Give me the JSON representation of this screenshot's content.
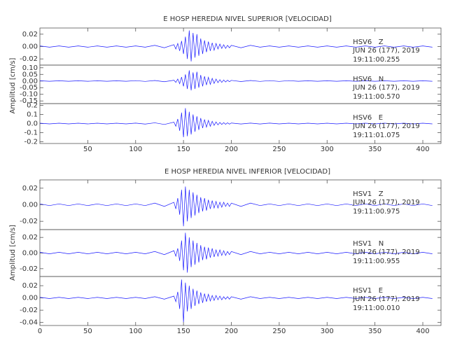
{
  "chart_data": [
    {
      "type": "line",
      "title": "E HOSP HEREDIA NIVEL SUPERIOR [VELOCIDAD]",
      "ylabel": "Amplitud [cm/s]",
      "xlim": [
        0,
        419
      ],
      "xticks": [
        50,
        100,
        150,
        200,
        250,
        300,
        350,
        400
      ],
      "x": [
        0,
        10,
        20,
        30,
        40,
        50,
        60,
        70,
        80,
        90,
        100,
        110,
        120,
        130,
        140,
        142,
        144,
        146,
        148,
        150,
        152,
        154,
        156,
        158,
        160,
        162,
        164,
        166,
        168,
        170,
        172,
        174,
        176,
        178,
        180,
        182,
        184,
        186,
        188,
        190,
        192,
        194,
        196,
        198,
        200,
        210,
        220,
        230,
        240,
        250,
        260,
        270,
        280,
        290,
        300,
        310,
        320,
        330,
        340,
        350,
        360,
        370,
        380,
        390,
        400,
        410
      ],
      "panels": [
        {
          "name": "HSV6   Z",
          "date": "JUN 26 (177), 2019",
          "time": "19:11:00.255",
          "color": "#1a1aff",
          "ylim": [
            -0.03,
            0.03
          ],
          "yticks": [
            {
              "value": 0.02,
              "label": "0.02"
            },
            {
              "value": 0,
              "label": "0.00"
            },
            {
              "value": -0.02,
              "label": "-0.02"
            }
          ],
          "values": [
            0.001,
            -0.001,
            0.001,
            -0.001,
            0.001,
            -0.001,
            0.001,
            -0.001,
            0.001,
            -0.001,
            0.001,
            -0.001,
            0.002,
            -0.002,
            0.003,
            -0.004,
            0.005,
            -0.007,
            0.009,
            -0.012,
            0.016,
            -0.02,
            0.026,
            -0.024,
            0.022,
            -0.018,
            0.02,
            -0.015,
            0.013,
            -0.012,
            0.01,
            -0.009,
            0.008,
            -0.007,
            0.006,
            -0.006,
            0.005,
            -0.004,
            0.004,
            -0.003,
            0.003,
            -0.003,
            0.002,
            -0.002,
            0.002,
            -0.002,
            0.002,
            -0.001,
            0.001,
            -0.001,
            0.001,
            -0.001,
            0.001,
            -0.001,
            0.001,
            -0.001,
            0.001,
            -0.001,
            0.001,
            -0.001,
            0.001,
            -0.001,
            0.001,
            -0.001,
            0.001,
            -0.001
          ]
        },
        {
          "name": "HSV6   N",
          "date": "JUN 26 (177), 2019",
          "time": "19:11:00.570",
          "color": "#1a1aff",
          "ylim": [
            -0.17,
            0.12
          ],
          "yticks": [
            {
              "value": 0.1,
              "label": "0.10"
            },
            {
              "value": 0.05,
              "label": "0.05"
            },
            {
              "value": 0,
              "label": "0.00"
            },
            {
              "value": -0.05,
              "label": "-0.05"
            },
            {
              "value": -0.1,
              "label": "-0.10"
            },
            {
              "value": -0.15,
              "label": "-0.15"
            }
          ],
          "values": [
            0.002,
            -0.002,
            0.002,
            -0.002,
            0.002,
            -0.002,
            0.002,
            -0.002,
            0.002,
            -0.002,
            0.003,
            -0.003,
            0.004,
            -0.005,
            0.006,
            -0.01,
            0.015,
            -0.02,
            0.03,
            -0.04,
            0.05,
            -0.06,
            0.08,
            -0.07,
            0.065,
            -0.06,
            0.07,
            -0.05,
            0.045,
            -0.04,
            0.035,
            -0.03,
            0.028,
            -0.025,
            0.02,
            -0.018,
            0.015,
            -0.012,
            0.01,
            -0.01,
            0.008,
            -0.007,
            0.006,
            -0.005,
            0.005,
            -0.004,
            0.004,
            -0.003,
            0.003,
            -0.003,
            0.003,
            -0.002,
            0.002,
            -0.002,
            0.002,
            -0.002,
            0.002,
            -0.002,
            0.002,
            -0.002,
            0.002,
            -0.002,
            0.002,
            -0.002,
            0.002,
            -0.002
          ]
        },
        {
          "name": "HSV6   E",
          "date": "JUN 26 (177), 2019",
          "time": "19:11:01.075",
          "color": "#1a1aff",
          "ylim": [
            -0.22,
            0.22
          ],
          "yticks": [
            {
              "value": 0.2,
              "label": "0.2"
            },
            {
              "value": 0.1,
              "label": "0.1"
            },
            {
              "value": 0,
              "label": "0.0"
            },
            {
              "value": -0.1,
              "label": "-0.1"
            },
            {
              "value": -0.2,
              "label": "-0.2"
            }
          ],
          "values": [
            0.004,
            -0.004,
            0.004,
            -0.004,
            0.004,
            -0.004,
            0.004,
            -0.004,
            0.004,
            -0.004,
            0.005,
            -0.006,
            0.008,
            -0.01,
            0.015,
            -0.03,
            0.05,
            -0.08,
            0.12,
            -0.15,
            0.17,
            -0.14,
            0.13,
            -0.12,
            0.1,
            -0.09,
            0.08,
            -0.07,
            0.06,
            -0.05,
            0.045,
            -0.04,
            0.035,
            -0.03,
            0.025,
            -0.02,
            0.018,
            -0.015,
            0.012,
            -0.01,
            0.01,
            -0.008,
            0.008,
            -0.006,
            0.006,
            -0.005,
            0.005,
            -0.005,
            0.005,
            -0.004,
            0.004,
            -0.004,
            0.004,
            -0.004,
            0.004,
            -0.004,
            0.004,
            -0.004,
            0.004,
            -0.004,
            0.004,
            -0.004,
            0.004,
            -0.004,
            0.004,
            -0.004
          ]
        }
      ]
    },
    {
      "type": "line",
      "title": "E HOSP HEREDIA NIVEL INFERIOR [VELOCIDAD]",
      "ylabel": "Amplitud [cm/s]",
      "xlim": [
        0,
        419
      ],
      "xticks": [
        0,
        50,
        100,
        150,
        200,
        250,
        300,
        350,
        400
      ],
      "x": [
        0,
        10,
        20,
        30,
        40,
        50,
        60,
        70,
        80,
        90,
        100,
        110,
        120,
        130,
        140,
        142,
        144,
        146,
        148,
        150,
        152,
        154,
        156,
        158,
        160,
        162,
        164,
        166,
        168,
        170,
        172,
        174,
        176,
        178,
        180,
        182,
        184,
        186,
        188,
        190,
        192,
        194,
        196,
        198,
        200,
        210,
        220,
        230,
        240,
        250,
        260,
        270,
        280,
        290,
        300,
        310,
        320,
        330,
        340,
        350,
        360,
        370,
        380,
        390,
        400,
        410
      ],
      "panels": [
        {
          "name": "HSV1   Z",
          "date": "JUN 26 (177), 2019",
          "time": "19:11:00.975",
          "color": "#1a1aff",
          "ylim": [
            -0.03,
            0.03
          ],
          "yticks": [
            {
              "value": 0.02,
              "label": "0.02"
            },
            {
              "value": 0,
              "label": "0.00"
            },
            {
              "value": -0.02,
              "label": "-0.02"
            }
          ],
          "values": [
            0.001,
            -0.001,
            0.001,
            -0.001,
            0.001,
            -0.001,
            0.001,
            -0.001,
            0.001,
            -0.001,
            0.001,
            -0.001,
            0.002,
            -0.002,
            0.003,
            -0.005,
            0.008,
            -0.012,
            0.018,
            -0.026,
            0.022,
            -0.02,
            0.018,
            -0.016,
            0.015,
            -0.013,
            0.012,
            -0.01,
            0.009,
            -0.008,
            0.008,
            -0.007,
            0.006,
            -0.005,
            0.005,
            -0.004,
            0.004,
            -0.004,
            0.003,
            -0.003,
            0.003,
            -0.002,
            0.002,
            -0.002,
            0.002,
            -0.002,
            0.002,
            -0.001,
            0.001,
            -0.001,
            0.001,
            -0.001,
            0.001,
            -0.001,
            0.001,
            -0.001,
            0.001,
            -0.001,
            0.001,
            -0.001,
            0.001,
            -0.001,
            0.001,
            -0.001,
            0.001,
            -0.001
          ]
        },
        {
          "name": "HSV1   N",
          "date": "JUN 26 (177), 2019",
          "time": "19:11:00.955",
          "color": "#1a1aff",
          "ylim": [
            -0.03,
            0.03
          ],
          "yticks": [
            {
              "value": 0.02,
              "label": "0.02"
            },
            {
              "value": 0,
              "label": "0.00"
            },
            {
              "value": -0.02,
              "label": "-0.02"
            }
          ],
          "values": [
            0.001,
            -0.001,
            0.001,
            -0.001,
            0.001,
            -0.001,
            0.001,
            -0.001,
            0.001,
            -0.001,
            0.001,
            -0.001,
            0.002,
            -0.002,
            0.003,
            -0.004,
            0.006,
            -0.01,
            0.016,
            -0.022,
            0.026,
            -0.025,
            0.02,
            -0.018,
            0.016,
            -0.015,
            0.013,
            -0.012,
            0.01,
            -0.009,
            0.008,
            -0.008,
            0.007,
            -0.006,
            0.006,
            -0.005,
            0.004,
            -0.004,
            0.004,
            -0.003,
            0.003,
            -0.003,
            0.002,
            -0.002,
            0.002,
            -0.002,
            0.002,
            -0.001,
            0.001,
            -0.001,
            0.001,
            -0.001,
            0.001,
            -0.001,
            0.001,
            -0.001,
            0.001,
            -0.001,
            0.001,
            -0.001,
            0.001,
            -0.001,
            0.001,
            -0.001,
            0.001,
            -0.001
          ]
        },
        {
          "name": "HSV1   E",
          "date": "JUN 26 (177), 2019",
          "time": "19:11:00.010",
          "color": "#1a1aff",
          "ylim": [
            -0.045,
            0.035
          ],
          "yticks": [
            {
              "value": 0.02,
              "label": "0.02"
            },
            {
              "value": 0,
              "label": "0.00"
            },
            {
              "value": -0.02,
              "label": "-0.02"
            },
            {
              "value": -0.04,
              "label": "-0.04"
            }
          ],
          "values": [
            0.001,
            -0.001,
            0.001,
            -0.001,
            0.001,
            -0.001,
            0.001,
            -0.001,
            0.001,
            -0.001,
            0.001,
            -0.001,
            0.002,
            -0.002,
            0.003,
            -0.006,
            0.01,
            -0.018,
            0.03,
            -0.04,
            0.025,
            -0.022,
            0.02,
            -0.018,
            0.015,
            -0.013,
            0.012,
            -0.01,
            0.009,
            -0.008,
            0.007,
            -0.006,
            0.006,
            -0.005,
            0.004,
            -0.004,
            0.004,
            -0.003,
            0.003,
            -0.003,
            0.002,
            -0.002,
            0.002,
            -0.002,
            0.002,
            -0.002,
            0.002,
            -0.001,
            0.001,
            -0.001,
            0.001,
            -0.001,
            0.001,
            -0.001,
            0.001,
            -0.001,
            0.001,
            -0.001,
            0.001,
            -0.001,
            0.001,
            -0.001,
            0.001,
            -0.001,
            0.001,
            -0.001
          ]
        }
      ]
    }
  ]
}
